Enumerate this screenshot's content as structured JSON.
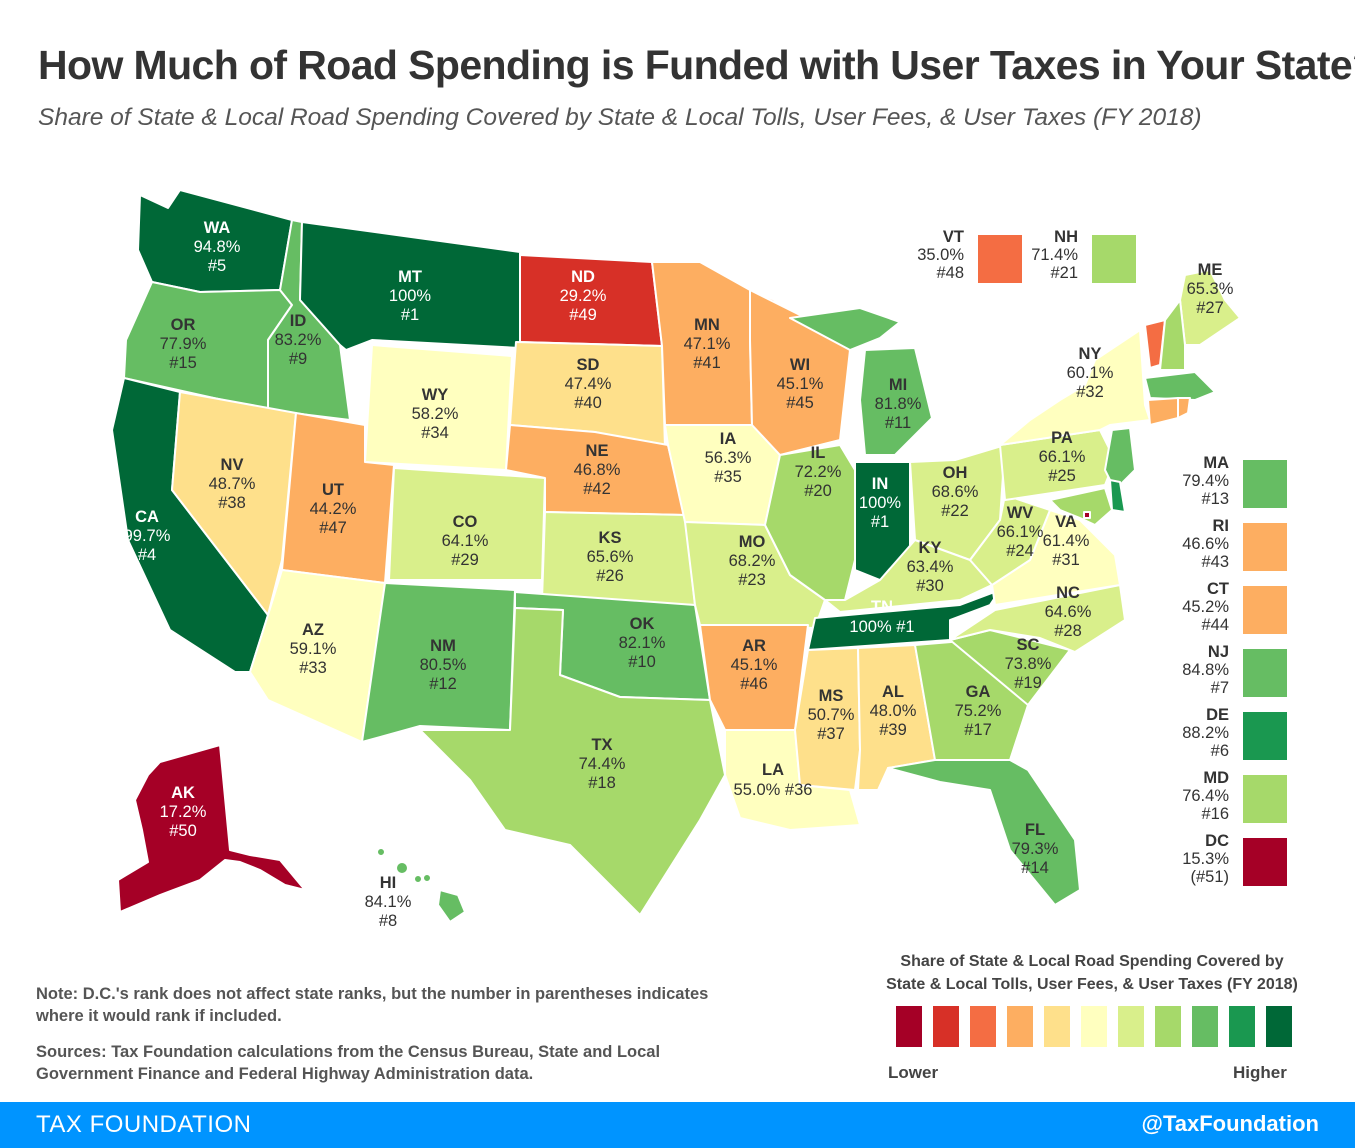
{
  "title": "How Much of Road Spending is Funded with User Taxes in Your State?",
  "subtitle": "Share of State & Local Road Spending Covered by State & Local Tolls, User Fees, & User Taxes (FY 2018)",
  "colors": {
    "c1": "#a50026",
    "c2": "#d73027",
    "c3": "#f46d43",
    "c4": "#fdae61",
    "c5": "#fee08b",
    "c6": "#ffffbf",
    "c7": "#d9ef8b",
    "c8": "#a6d96a",
    "c9": "#66bd63",
    "c10": "#1a9850",
    "c11": "#006837"
  },
  "states": {
    "WA": {
      "abbr": "WA",
      "value": "94.8%",
      "rank": "#5",
      "color": "c11"
    },
    "OR": {
      "abbr": "OR",
      "value": "77.9%",
      "rank": "#15",
      "color": "c9"
    },
    "CA": {
      "abbr": "CA",
      "value": "99.7%",
      "rank": "#4",
      "color": "c11"
    },
    "ID": {
      "abbr": "ID",
      "value": "83.2%",
      "rank": "#9",
      "color": "c9"
    },
    "NV": {
      "abbr": "NV",
      "value": "48.7%",
      "rank": "#38",
      "color": "c5"
    },
    "MT": {
      "abbr": "MT",
      "value": "100%",
      "rank": "#1",
      "color": "c11"
    },
    "WY": {
      "abbr": "WY",
      "value": "58.2%",
      "rank": "#34",
      "color": "c6"
    },
    "UT": {
      "abbr": "UT",
      "value": "44.2%",
      "rank": "#47",
      "color": "c4"
    },
    "AZ": {
      "abbr": "AZ",
      "value": "59.1%",
      "rank": "#33",
      "color": "c6"
    },
    "CO": {
      "abbr": "CO",
      "value": "64.1%",
      "rank": "#29",
      "color": "c7"
    },
    "NM": {
      "abbr": "NM",
      "value": "80.5%",
      "rank": "#12",
      "color": "c9"
    },
    "ND": {
      "abbr": "ND",
      "value": "29.2%",
      "rank": "#49",
      "color": "c2"
    },
    "SD": {
      "abbr": "SD",
      "value": "47.4%",
      "rank": "#40",
      "color": "c5"
    },
    "NE": {
      "abbr": "NE",
      "value": "46.8%",
      "rank": "#42",
      "color": "c4"
    },
    "KS": {
      "abbr": "KS",
      "value": "65.6%",
      "rank": "#26",
      "color": "c7"
    },
    "OK": {
      "abbr": "OK",
      "value": "82.1%",
      "rank": "#10",
      "color": "c9"
    },
    "TX": {
      "abbr": "TX",
      "value": "74.4%",
      "rank": "#18",
      "color": "c8"
    },
    "MN": {
      "abbr": "MN",
      "value": "47.1%",
      "rank": "#41",
      "color": "c4"
    },
    "IA": {
      "abbr": "IA",
      "value": "56.3%",
      "rank": "#35",
      "color": "c6"
    },
    "MO": {
      "abbr": "MO",
      "value": "68.2%",
      "rank": "#23",
      "color": "c7"
    },
    "AR": {
      "abbr": "AR",
      "value": "45.1%",
      "rank": "#46",
      "color": "c4"
    },
    "LA": {
      "abbr": "LA",
      "value": "55.0% #36",
      "rank": "",
      "color": "c6"
    },
    "WI": {
      "abbr": "WI",
      "value": "45.1%",
      "rank": "#45",
      "color": "c4"
    },
    "IL": {
      "abbr": "IL",
      "value": "72.2%",
      "rank": "#20",
      "color": "c8"
    },
    "MI": {
      "abbr": "MI",
      "value": "81.8%",
      "rank": "#11",
      "color": "c9"
    },
    "IN": {
      "abbr": "IN",
      "value": "100%",
      "rank": "#1",
      "color": "c11"
    },
    "OH": {
      "abbr": "OH",
      "value": "68.6%",
      "rank": "#22",
      "color": "c7"
    },
    "KY": {
      "abbr": "KY",
      "value": "63.4%",
      "rank": "#30",
      "color": "c7"
    },
    "TN": {
      "abbr": "TN",
      "value": "100% #1",
      "rank": "",
      "color": "c11"
    },
    "MS": {
      "abbr": "MS",
      "value": "50.7%",
      "rank": "#37",
      "color": "c5"
    },
    "AL": {
      "abbr": "AL",
      "value": "48.0%",
      "rank": "#39",
      "color": "c5"
    },
    "GA": {
      "abbr": "GA",
      "value": "75.2%",
      "rank": "#17",
      "color": "c8"
    },
    "FL": {
      "abbr": "FL",
      "value": "79.3%",
      "rank": "#14",
      "color": "c9"
    },
    "SC": {
      "abbr": "SC",
      "value": "73.8%",
      "rank": "#19",
      "color": "c8"
    },
    "NC": {
      "abbr": "NC",
      "value": "64.6%",
      "rank": "#28",
      "color": "c7"
    },
    "VA": {
      "abbr": "VA",
      "value": "61.4%",
      "rank": "#31",
      "color": "c6"
    },
    "WV": {
      "abbr": "WV",
      "value": "66.1%",
      "rank": "#24",
      "color": "c7"
    },
    "PA": {
      "abbr": "PA",
      "value": "66.1%",
      "rank": "#25",
      "color": "c7"
    },
    "NY": {
      "abbr": "NY",
      "value": "60.1%",
      "rank": "#32",
      "color": "c6"
    },
    "ME": {
      "abbr": "ME",
      "value": "65.3%",
      "rank": "#27",
      "color": "c7"
    },
    "AK": {
      "abbr": "AK",
      "value": "17.2%",
      "rank": "#50",
      "color": "c1"
    },
    "HI": {
      "abbr": "HI",
      "value": "84.1%",
      "rank": "#8",
      "color": "c9"
    }
  },
  "small_states": [
    {
      "abbr": "VT",
      "value": "35.0%",
      "rank": "#48",
      "color": "c3"
    },
    {
      "abbr": "NH",
      "value": "71.4%",
      "rank": "#21",
      "color": "c8"
    },
    {
      "abbr": "MA",
      "value": "79.4%",
      "rank": "#13",
      "color": "c9"
    },
    {
      "abbr": "RI",
      "value": "46.6%",
      "rank": "#43",
      "color": "c4"
    },
    {
      "abbr": "CT",
      "value": "45.2%",
      "rank": "#44",
      "color": "c4"
    },
    {
      "abbr": "NJ",
      "value": "84.8%",
      "rank": "#7",
      "color": "c9"
    },
    {
      "abbr": "DE",
      "value": "88.2%",
      "rank": "#6",
      "color": "c10"
    },
    {
      "abbr": "MD",
      "value": "76.4%",
      "rank": "#16",
      "color": "c8"
    },
    {
      "abbr": "DC",
      "value": "15.3%",
      "rank": "(#51)",
      "color": "c1"
    }
  ],
  "legend": {
    "title_line1": "Share of State & Local Road Spending Covered by",
    "title_line2": "State & Local Tolls, User Fees, & User Taxes (FY 2018)",
    "low_label": "Lower",
    "high_label": "Higher",
    "swatches": [
      "c1",
      "c2",
      "c3",
      "c4",
      "c5",
      "c6",
      "c7",
      "c8",
      "c9",
      "c10",
      "c11"
    ]
  },
  "notes": {
    "note": "Note: D.C.'s rank does not affect state ranks, but the number in parentheses indicates where it would rank if included.",
    "sources": "Sources: Tax Foundation calculations from the Census Bureau, State and Local Government Finance and Federal Highway Administration data."
  },
  "footer": {
    "brand": "TAX FOUNDATION",
    "handle": "@TaxFoundation"
  }
}
